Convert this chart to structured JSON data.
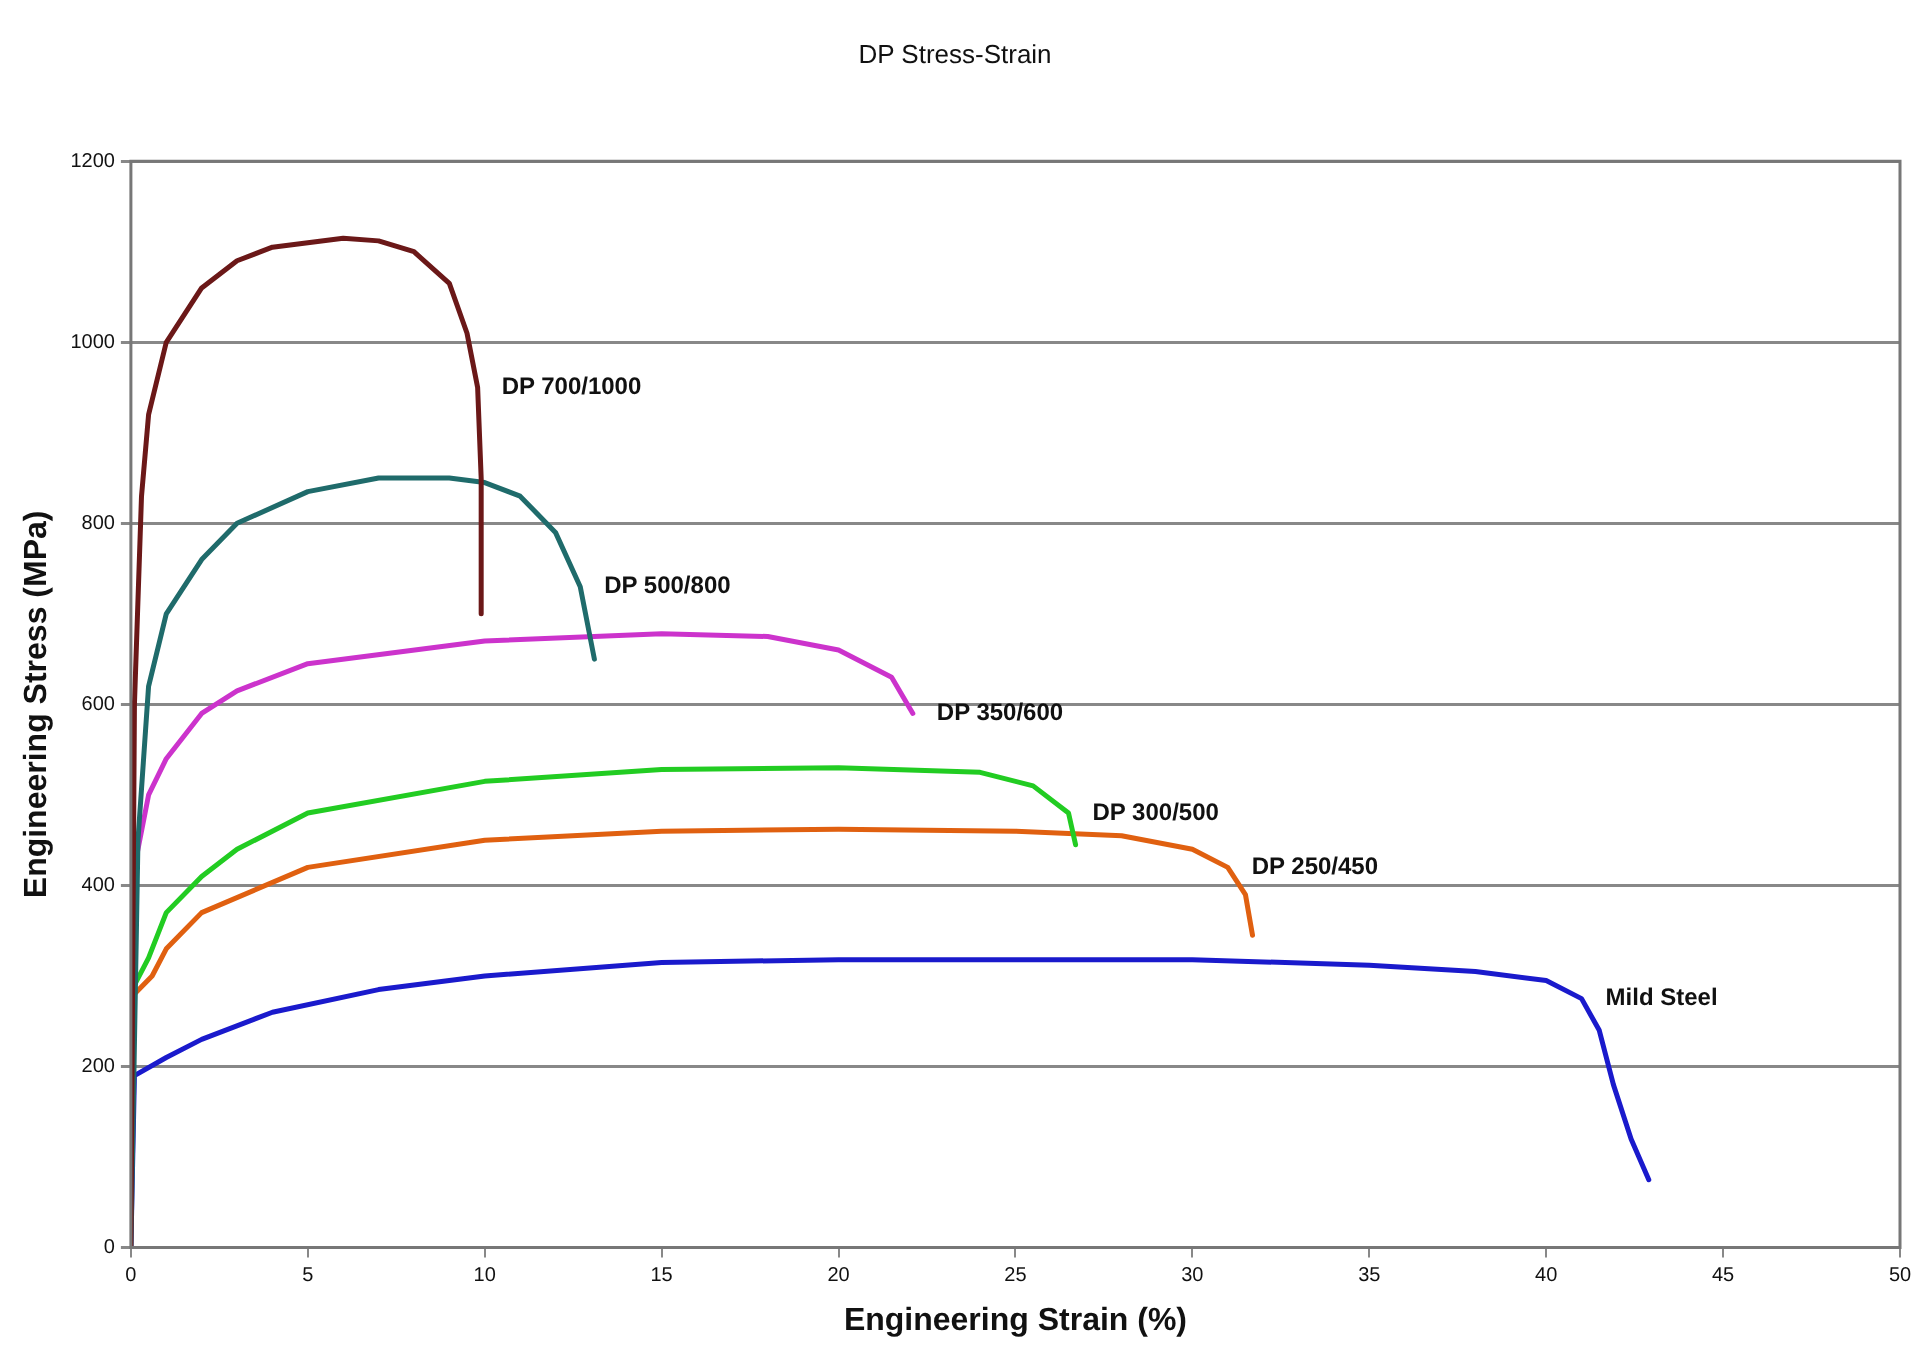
{
  "chart_data": {
    "type": "line",
    "title": "DP Stress-Strain",
    "xlabel": "Engineering Strain (%)",
    "ylabel": "Engineering Stress (MPa)",
    "xlim": [
      0,
      50
    ],
    "xticks": [
      0,
      5,
      10,
      15,
      20,
      25,
      30,
      35,
      40,
      45,
      50
    ],
    "ylim": [
      0,
      1200
    ],
    "yticks": [
      0,
      200,
      400,
      600,
      800,
      1000,
      1200
    ],
    "grid": "y",
    "legend": false,
    "marker": "none",
    "line_style": "solid",
    "series": [
      {
        "name": "DP 700/1000",
        "color": "#6b1818",
        "x": [
          0,
          0.1,
          0.3,
          0.5,
          1,
          2,
          3,
          4,
          6,
          7,
          8,
          9,
          9.5,
          9.8,
          9.9,
          9.9
        ],
        "values": [
          0,
          600,
          830,
          920,
          1000,
          1060,
          1090,
          1105,
          1115,
          1112,
          1100,
          1065,
          1010,
          950,
          850,
          700
        ]
      },
      {
        "name": "DP 500/800",
        "color": "#1f6b6b",
        "x": [
          0,
          0.2,
          0.5,
          1,
          2,
          3,
          5,
          7,
          9,
          10,
          11,
          12,
          12.7,
          13.1
        ],
        "values": [
          0,
          450,
          620,
          700,
          760,
          800,
          835,
          850,
          850,
          845,
          830,
          790,
          730,
          650
        ]
      },
      {
        "name": "DP 350/600",
        "color": "#cc33cc",
        "x": [
          0.1,
          0.5,
          1,
          2,
          3,
          5,
          10,
          15,
          18,
          20,
          21.5,
          22.1
        ],
        "values": [
          420,
          500,
          540,
          590,
          615,
          645,
          670,
          678,
          675,
          660,
          630,
          590
        ]
      },
      {
        "name": "DP 300/500",
        "color": "#22cc22",
        "x": [
          0.1,
          0.5,
          1,
          2,
          3,
          5,
          10,
          15,
          20,
          24,
          25.5,
          26.5,
          26.7
        ],
        "values": [
          290,
          320,
          370,
          410,
          440,
          480,
          515,
          528,
          530,
          525,
          510,
          480,
          445
        ]
      },
      {
        "name": "DP 250/450",
        "color": "#e06010",
        "x": [
          0.1,
          0.6,
          1,
          2,
          5,
          10,
          15,
          20,
          25,
          28,
          30,
          31,
          31.5,
          31.7
        ],
        "values": [
          280,
          300,
          330,
          370,
          420,
          450,
          460,
          462,
          460,
          455,
          440,
          420,
          390,
          345
        ]
      },
      {
        "name": "Mild Steel",
        "color": "#1a1acc",
        "x": [
          0,
          0.1,
          1,
          2,
          4,
          7,
          10,
          15,
          20,
          25,
          30,
          35,
          38,
          40,
          41,
          41.5,
          41.9,
          42.4,
          42.9
        ],
        "values": [
          0,
          190,
          210,
          230,
          260,
          285,
          300,
          315,
          318,
          318,
          318,
          312,
          305,
          295,
          275,
          240,
          180,
          120,
          75
        ]
      }
    ]
  }
}
